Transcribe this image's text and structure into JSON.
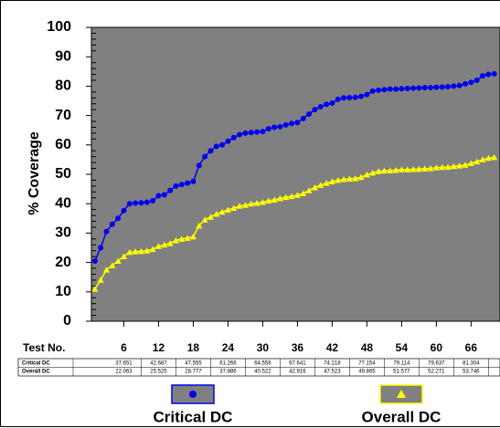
{
  "chart_data": {
    "type": "line",
    "ylabel": "% Coverage",
    "table_header": "Test No.",
    "x": [
      1,
      2,
      3,
      4,
      5,
      6,
      7,
      8,
      9,
      10,
      11,
      12,
      13,
      14,
      15,
      16,
      17,
      18,
      19,
      20,
      21,
      22,
      23,
      24,
      25,
      26,
      27,
      28,
      29,
      30,
      31,
      32,
      33,
      34,
      35,
      36,
      37,
      38,
      39,
      40,
      41,
      42,
      43,
      44,
      45,
      46,
      47,
      48,
      49,
      50,
      51,
      52,
      53,
      54,
      55,
      56,
      57,
      58,
      59,
      60,
      61,
      62,
      63,
      64,
      65,
      66,
      67,
      68,
      69,
      70
    ],
    "series": [
      {
        "name": "Critical DC",
        "color": "#0000ee",
        "marker": "circle",
        "values": [
          20.5,
          25,
          30.5,
          33,
          35,
          37.651,
          40,
          40.2,
          40.3,
          40.5,
          41,
          42.687,
          43,
          44.5,
          46,
          46.5,
          47,
          47.555,
          53,
          56,
          58,
          59.5,
          60,
          61.266,
          62.5,
          63.5,
          64,
          64.2,
          64.4,
          64.558,
          65.5,
          66,
          66.2,
          66.8,
          67.3,
          67.641,
          69,
          70.5,
          72,
          73,
          73.8,
          74.218,
          75.5,
          76,
          76.1,
          76.2,
          76.5,
          77.154,
          78.3,
          78.6,
          78.8,
          79,
          79,
          79.114,
          79.2,
          79.3,
          79.4,
          79.5,
          79.5,
          79.637,
          79.7,
          79.8,
          80,
          80.2,
          80.8,
          81.304,
          82,
          83.5,
          84,
          84.2
        ]
      },
      {
        "name": "Overall DC",
        "color": "#ffff00",
        "marker": "triangle",
        "values": [
          11,
          14,
          17.5,
          19,
          20.5,
          22.063,
          23.5,
          23.7,
          23.8,
          24,
          24.5,
          25.525,
          26,
          26.5,
          27.5,
          28,
          28.3,
          28.777,
          32.5,
          34.5,
          35.5,
          36.5,
          37.2,
          37.886,
          38.5,
          39.2,
          39.5,
          40,
          40.2,
          40.522,
          41,
          41.3,
          41.8,
          42.2,
          42.5,
          42.916,
          43.5,
          44.5,
          45.5,
          46.3,
          47,
          47.523,
          48,
          48.3,
          48.5,
          48.6,
          49,
          49.865,
          50.5,
          51,
          51.2,
          51.3,
          51.4,
          51.577,
          51.6,
          51.7,
          51.8,
          51.9,
          52,
          52.271,
          52.4,
          52.5,
          52.7,
          52.9,
          53.2,
          53.746,
          54.3,
          55,
          55.5,
          55.8
        ]
      }
    ],
    "xlim": [
      0.4,
      71
    ],
    "xticks": [
      6,
      12,
      18,
      24,
      30,
      36,
      42,
      48,
      54,
      60,
      66
    ],
    "ylim": [
      0,
      100
    ],
    "yticks": [
      0,
      10,
      20,
      30,
      40,
      50,
      60,
      70,
      80,
      90,
      100
    ],
    "plot_background": "#808080"
  }
}
